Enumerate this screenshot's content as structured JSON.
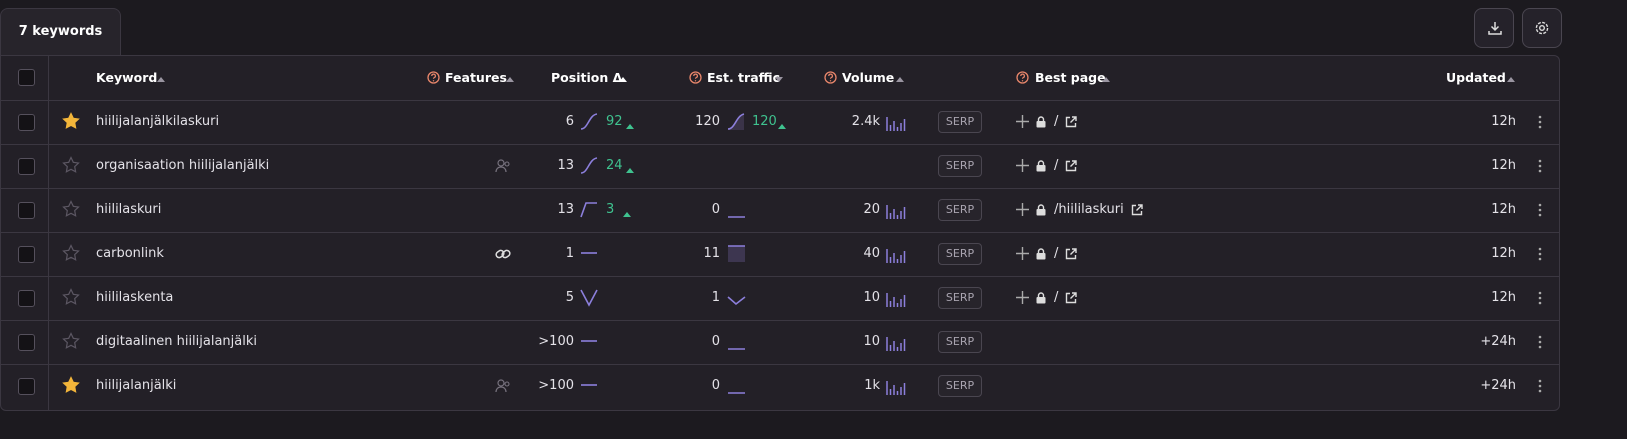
{
  "tab": "7 keywords",
  "columns": {
    "keyword": "Keyword",
    "features": "Features",
    "position": "Position Δ",
    "traffic": "Est. traffic",
    "volume": "Volume",
    "best_page": "Best page",
    "updated": "Updated"
  },
  "serp": "SERP",
  "rows": [
    {
      "starred": true,
      "keyword": "hiilijalanjälkilaskuri",
      "feature": null,
      "position": 6,
      "position_change": 92,
      "position_chart": "rise",
      "traffic": 120,
      "traffic_change": 120,
      "traffic_chart": "rise",
      "volume": "2.4k",
      "best_page": "/",
      "updated": "12h"
    },
    {
      "starred": false,
      "keyword": "organisaation hiilijalanjälki",
      "feature": "people",
      "position": 13,
      "position_change": 24,
      "position_chart": "rise",
      "traffic": null,
      "traffic_change": null,
      "traffic_chart": null,
      "volume": null,
      "best_page": "/",
      "updated": "12h"
    },
    {
      "starred": false,
      "keyword": "hiililaskuri",
      "feature": null,
      "position": 13,
      "position_change": 3,
      "position_chart": "step",
      "traffic": 0,
      "traffic_change": null,
      "traffic_chart": "flat",
      "volume": 20,
      "best_page": "/hiililaskuri",
      "updated": "12h"
    },
    {
      "starred": false,
      "keyword": "carbonlink",
      "feature": "link",
      "position": 1,
      "position_change": null,
      "position_chart": "level",
      "traffic": 11,
      "traffic_change": null,
      "traffic_chart": "block",
      "volume": 40,
      "best_page": "/",
      "updated": "12h"
    },
    {
      "starred": false,
      "keyword": "hiililaskenta",
      "feature": null,
      "position": 5,
      "position_change": null,
      "position_chart": "v",
      "traffic": 1,
      "traffic_change": null,
      "traffic_chart": "dip",
      "volume": 10,
      "best_page": "/",
      "updated": "12h"
    },
    {
      "starred": false,
      "keyword": "digitaalinen hiilijalanjälki",
      "feature": null,
      "position": ">100",
      "position_change": null,
      "position_chart": "level",
      "traffic": 0,
      "traffic_change": null,
      "traffic_chart": "flat",
      "volume": 10,
      "best_page": null,
      "updated": "+24h"
    },
    {
      "starred": true,
      "keyword": "hiilijalanjälki",
      "feature": "people",
      "position": ">100",
      "position_change": null,
      "position_chart": "level",
      "traffic": 0,
      "traffic_change": null,
      "traffic_chart": "flat",
      "volume": "1k",
      "best_page": null,
      "updated": "+24h"
    }
  ]
}
